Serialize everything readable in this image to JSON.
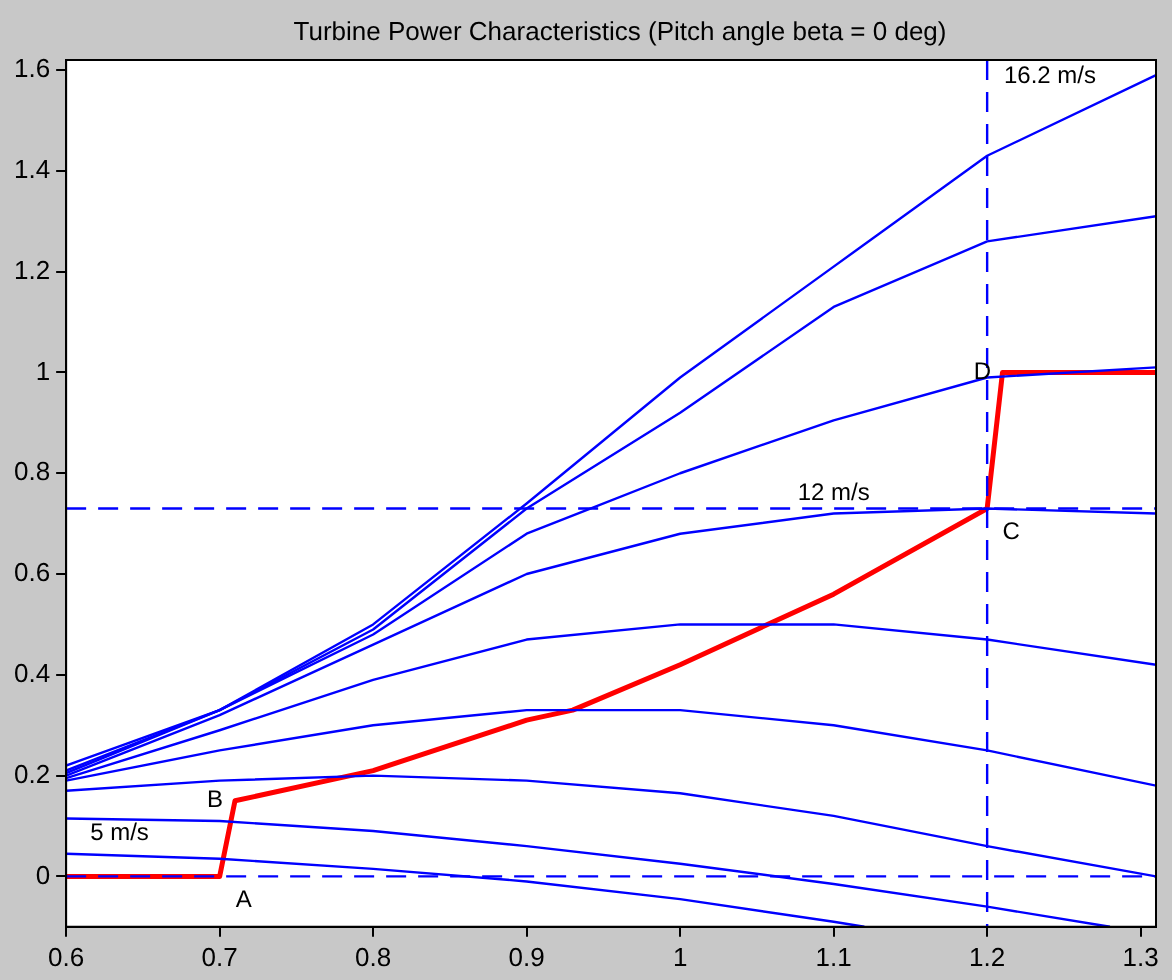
{
  "chart_data": {
    "type": "line",
    "title": "Turbine Power Characteristics (Pitch angle beta = 0 deg)",
    "xlim": [
      0.6,
      1.31
    ],
    "xticks": [
      0.6,
      0.7,
      0.8,
      0.9,
      1,
      1.1,
      1.2,
      1.3
    ],
    "ylim": [
      -0.1,
      1.62
    ],
    "yticks": [
      0,
      0.2,
      0.4,
      0.6,
      0.8,
      1,
      1.2,
      1.4,
      1.6
    ],
    "grid": false,
    "legend": false,
    "marker": "none",
    "line_style": "solid",
    "series": [
      {
        "color": "#0000ff",
        "x": [
          0.6,
          0.7,
          0.8,
          0.9,
          1,
          1.1,
          1.12
        ],
        "values": [
          0.045,
          0.035,
          0.015,
          -0.01,
          -0.045,
          -0.09,
          -0.1
        ]
      },
      {
        "color": "#0000ff",
        "x": [
          0.6,
          0.7,
          0.8,
          0.9,
          1,
          1.1,
          1.2,
          1.28
        ],
        "values": [
          0.115,
          0.11,
          0.09,
          0.06,
          0.025,
          -0.015,
          -0.06,
          -0.1
        ]
      },
      {
        "color": "#0000ff",
        "x": [
          0.6,
          0.7,
          0.8,
          0.9,
          1,
          1.1,
          1.2,
          1.31
        ],
        "values": [
          0.17,
          0.19,
          0.2,
          0.19,
          0.165,
          0.12,
          0.06,
          0
        ]
      },
      {
        "color": "#0000ff",
        "x": [
          0.6,
          0.7,
          0.8,
          0.9,
          1,
          1.1,
          1.2,
          1.31
        ],
        "values": [
          0.19,
          0.25,
          0.3,
          0.33,
          0.33,
          0.3,
          0.25,
          0.18
        ]
      },
      {
        "color": "#0000ff",
        "x": [
          0.6,
          0.7,
          0.8,
          0.9,
          1,
          1.1,
          1.2,
          1.31
        ],
        "values": [
          0.195,
          0.29,
          0.39,
          0.47,
          0.5,
          0.5,
          0.47,
          0.42
        ]
      },
      {
        "color": "#0000ff",
        "x": [
          0.6,
          0.7,
          0.8,
          0.9,
          1,
          1.1,
          1.2,
          1.31
        ],
        "values": [
          0.2,
          0.32,
          0.46,
          0.6,
          0.68,
          0.72,
          0.73,
          0.72
        ]
      },
      {
        "color": "#0000ff",
        "x": [
          0.6,
          0.7,
          0.8,
          0.9,
          1,
          1.1,
          1.2,
          1.31
        ],
        "values": [
          0.205,
          0.33,
          0.48,
          0.68,
          0.8,
          0.905,
          0.99,
          1.01
        ]
      },
      {
        "color": "#0000ff",
        "x": [
          0.6,
          0.7,
          0.8,
          0.9,
          1,
          1.1,
          1.2,
          1.31
        ],
        "values": [
          0.21,
          0.33,
          0.49,
          0.73,
          0.92,
          1.13,
          1.26,
          1.31
        ]
      },
      {
        "color": "#0000ff",
        "x": [
          0.6,
          0.7,
          0.8,
          0.9,
          1,
          1.1,
          1.2,
          1.31
        ],
        "values": [
          0.22,
          0.33,
          0.5,
          0.74,
          0.99,
          1.21,
          1.43,
          1.59
        ]
      },
      {
        "color": "#ff0000",
        "x": [
          0.6,
          0.7,
          0.71,
          0.8,
          0.9,
          0.93,
          1,
          1.1,
          1.2,
          1.21,
          1.31
        ],
        "values": [
          0,
          0,
          0.15,
          0.21,
          0.31,
          0.33,
          0.42,
          0.56,
          0.73,
          1,
          1
        ]
      }
    ],
    "ref_lines": [
      {
        "axis": "y",
        "value": 0.73,
        "color": "#0000ff",
        "line_style": "dashed"
      },
      {
        "axis": "x",
        "value": 1.2,
        "color": "#0000ff",
        "line_style": "dashed"
      },
      {
        "axis": "y",
        "value": 0,
        "color": "#0000ff",
        "line_style": "dashed"
      }
    ],
    "annotations": [
      "16.2 m/s",
      {
        "text": "12 m/s",
        "x": 1.1,
        "y": 0.72
      },
      {
        "text": "5 m/s",
        "x": 0.6,
        "y": 0.045
      },
      {
        "text": "A",
        "x": 0.7,
        "y": 0
      },
      {
        "text": "B",
        "x": 0.71,
        "y": 0.15
      },
      {
        "text": "C",
        "x": 1.2,
        "y": 0.73
      },
      {
        "text": "D",
        "x": 1.21,
        "y": 1
      }
    ]
  }
}
